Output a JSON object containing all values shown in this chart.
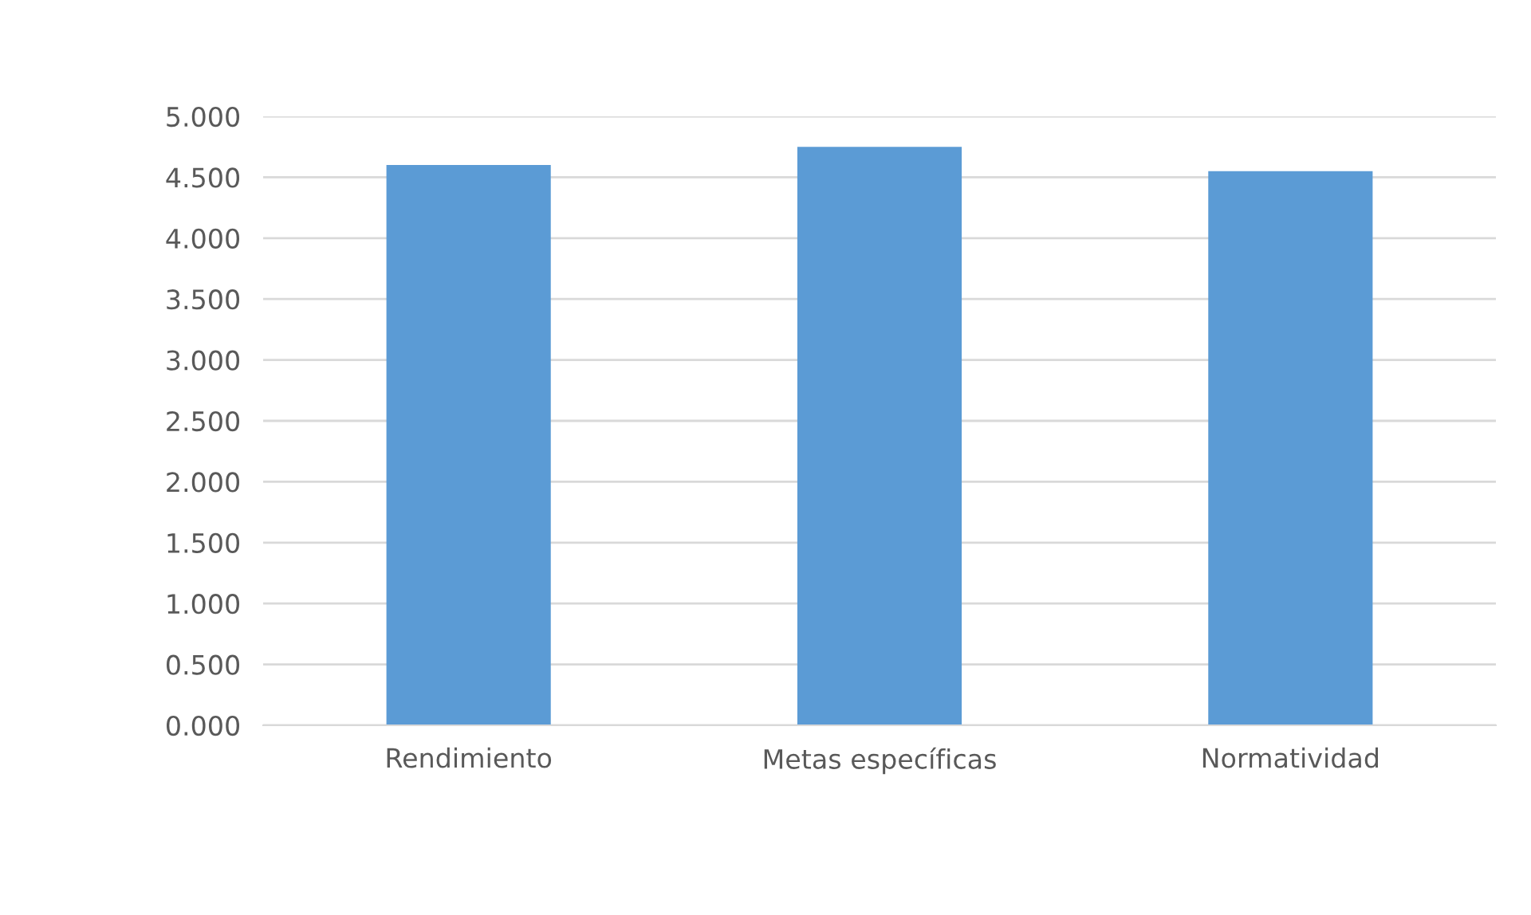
{
  "chart_data": {
    "type": "bar",
    "categories": [
      "Rendimiento",
      "Metas específicas",
      "Normatividad"
    ],
    "values": [
      4.6,
      4.75,
      4.55
    ],
    "color": "#5b9bd5",
    "ylim": [
      0,
      5
    ],
    "yticks": [
      {
        "value": 0,
        "label": "0.000"
      },
      {
        "value": 0.5,
        "label": "0.500"
      },
      {
        "value": 1,
        "label": "1.000"
      },
      {
        "value": 1.5,
        "label": "1.500"
      },
      {
        "value": 2,
        "label": "2.000"
      },
      {
        "value": 2.5,
        "label": "2.500"
      },
      {
        "value": 3,
        "label": "3.000"
      },
      {
        "value": 3.5,
        "label": "3.500"
      },
      {
        "value": 4,
        "label": "4.000"
      },
      {
        "value": 4.5,
        "label": "4.500"
      },
      {
        "value": 5,
        "label": "5.000"
      }
    ],
    "grid": "y"
  }
}
